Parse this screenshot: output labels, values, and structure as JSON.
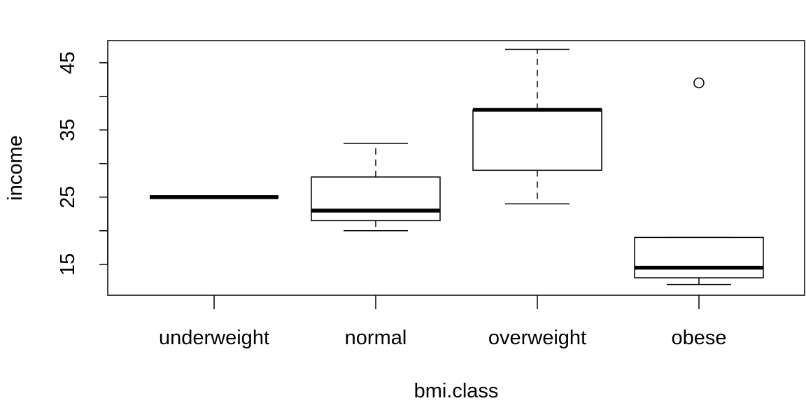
{
  "chart_data": {
    "type": "boxplot",
    "title": "",
    "xlabel": "bmi.class",
    "ylabel": "income",
    "categories": [
      "underweight",
      "normal",
      "overweight",
      "obese"
    ],
    "ylim": [
      10.4,
      48.3
    ],
    "y_ticks": [
      15,
      20,
      25,
      30,
      35,
      40,
      45
    ],
    "y_tick_labels": [
      "15",
      "",
      "25",
      "",
      "35",
      "",
      "45"
    ],
    "boxes": [
      {
        "category": "underweight",
        "whisker_low": 25,
        "q1": 25,
        "median": 25,
        "q3": 25,
        "whisker_high": 25,
        "outliers": []
      },
      {
        "category": "normal",
        "whisker_low": 20,
        "q1": 21.5,
        "median": 23,
        "q3": 28,
        "whisker_high": 33,
        "outliers": []
      },
      {
        "category": "overweight",
        "whisker_low": 24,
        "q1": 29,
        "median": 38,
        "q3": 38,
        "whisker_high": 47,
        "outliers": []
      },
      {
        "category": "obese",
        "whisker_low": 12,
        "q1": 13,
        "median": 14.5,
        "q3": 19,
        "whisker_high": 19,
        "outliers": [
          42
        ]
      }
    ],
    "grid": false,
    "legend": "none",
    "colors": {
      "box_fill": "#ffffff",
      "stroke": "#000000"
    }
  }
}
